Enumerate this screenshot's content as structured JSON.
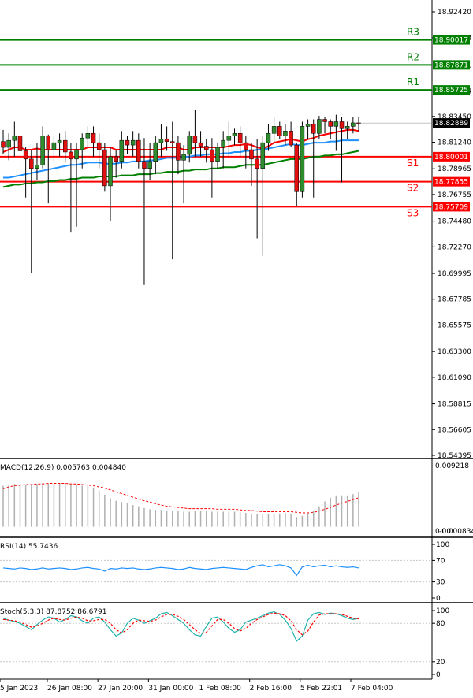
{
  "chart_data": {
    "type": "candlestick",
    "price_axis": {
      "ticks": [
        "18.92420",
        "18.90193",
        "18.87871",
        "18.85644",
        "18.83450",
        "18.81240",
        "18.78965",
        "18.76755",
        "18.74480",
        "18.72270",
        "18.69995",
        "18.67785",
        "18.65575",
        "18.63300",
        "18.61090",
        "18.58815",
        "18.56605",
        "18.54395"
      ],
      "range": [
        18.54395,
        18.9242
      ]
    },
    "levels": [
      {
        "name": "R3",
        "value": 18.90017,
        "value_text": "18.90017",
        "color": "#008000"
      },
      {
        "name": "R2",
        "value": 18.87871,
        "value_text": "18.87871",
        "color": "#008000"
      },
      {
        "name": "R1",
        "value": 18.85725,
        "value_text": "18.85725",
        "color": "#008000"
      },
      {
        "name": "S1",
        "value": 18.80001,
        "value_text": "18.80001",
        "color": "#ff0000"
      },
      {
        "name": "S2",
        "value": 18.77855,
        "value_text": "18.77855",
        "color": "#ff0000"
      },
      {
        "name": "S3",
        "value": 18.75709,
        "value_text": "18.75709",
        "color": "#ff0000"
      }
    ],
    "current_price": {
      "value": 18.82889,
      "value_text": "18.82889"
    },
    "candles": [
      [
        18.813,
        18.823,
        18.802,
        18.808
      ],
      [
        18.808,
        18.82,
        18.797,
        18.814
      ],
      [
        18.814,
        18.83,
        18.8,
        18.818
      ],
      [
        18.818,
        18.819,
        18.795,
        18.805
      ],
      [
        18.805,
        18.808,
        18.765,
        18.798
      ],
      [
        18.798,
        18.806,
        18.7,
        18.79
      ],
      [
        18.79,
        18.812,
        18.78,
        18.793
      ],
      [
        18.793,
        18.826,
        18.79,
        18.818
      ],
      [
        18.818,
        18.819,
        18.76,
        18.806
      ],
      [
        18.806,
        18.818,
        18.795,
        18.812
      ],
      [
        18.812,
        18.82,
        18.8,
        18.814
      ],
      [
        18.814,
        18.822,
        18.795,
        18.804
      ],
      [
        18.804,
        18.812,
        18.735,
        18.798
      ],
      [
        18.798,
        18.812,
        18.74,
        18.806
      ],
      [
        18.806,
        18.82,
        18.79,
        18.816
      ],
      [
        18.816,
        18.826,
        18.808,
        18.82
      ],
      [
        18.82,
        18.826,
        18.8,
        18.812
      ],
      [
        18.812,
        18.82,
        18.79,
        18.806
      ],
      [
        18.806,
        18.812,
        18.77,
        18.775
      ],
      [
        18.775,
        18.808,
        18.745,
        18.8
      ],
      [
        18.8,
        18.806,
        18.782,
        18.796
      ],
      [
        18.796,
        18.822,
        18.79,
        18.814
      ],
      [
        18.814,
        18.818,
        18.802,
        18.81
      ],
      [
        18.81,
        18.822,
        18.8,
        18.814
      ],
      [
        18.814,
        18.82,
        18.79,
        18.796
      ],
      [
        18.796,
        18.816,
        18.69,
        18.79
      ],
      [
        18.79,
        18.812,
        18.78,
        18.796
      ],
      [
        18.796,
        18.818,
        18.785,
        18.812
      ],
      [
        18.812,
        18.828,
        18.8,
        18.815
      ],
      [
        18.815,
        18.826,
        18.805,
        18.813
      ],
      [
        18.813,
        18.83,
        18.712,
        18.812
      ],
      [
        18.812,
        18.818,
        18.785,
        18.797
      ],
      [
        18.797,
        18.81,
        18.76,
        18.802
      ],
      [
        18.802,
        18.822,
        18.795,
        18.818
      ],
      [
        18.818,
        18.84,
        18.8,
        18.812
      ],
      [
        18.812,
        18.822,
        18.8,
        18.809
      ],
      [
        18.809,
        18.815,
        18.795,
        18.806
      ],
      [
        18.806,
        18.816,
        18.765,
        18.796
      ],
      [
        18.796,
        18.812,
        18.79,
        18.808
      ],
      [
        18.808,
        18.822,
        18.79,
        18.814
      ],
      [
        18.814,
        18.83,
        18.8,
        18.818
      ],
      [
        18.818,
        18.824,
        18.81,
        18.82
      ],
      [
        18.82,
        18.826,
        18.8,
        18.812
      ],
      [
        18.812,
        18.818,
        18.79,
        18.806
      ],
      [
        18.806,
        18.812,
        18.775,
        18.798
      ],
      [
        18.798,
        18.815,
        18.73,
        18.79
      ],
      [
        18.79,
        18.818,
        18.715,
        18.812
      ],
      [
        18.812,
        18.828,
        18.805,
        18.82
      ],
      [
        18.82,
        18.834,
        18.812,
        18.826
      ],
      [
        18.826,
        18.83,
        18.815,
        18.818
      ],
      [
        18.818,
        18.828,
        18.81,
        18.822
      ],
      [
        18.822,
        18.83,
        18.808,
        18.81
      ],
      [
        18.81,
        18.812,
        18.758,
        18.77
      ],
      [
        18.77,
        18.83,
        18.765,
        18.826
      ],
      [
        18.826,
        18.832,
        18.815,
        18.828
      ],
      [
        18.828,
        18.832,
        18.765,
        18.82
      ],
      [
        18.82,
        18.835,
        18.815,
        18.832
      ],
      [
        18.832,
        18.834,
        18.82,
        18.83
      ],
      [
        18.83,
        18.832,
        18.815,
        18.826
      ],
      [
        18.826,
        18.836,
        18.805,
        18.83
      ],
      [
        18.83,
        18.834,
        18.778,
        18.824
      ],
      [
        18.824,
        18.83,
        18.815,
        18.826
      ],
      [
        18.826,
        18.834,
        18.82,
        18.829
      ],
      [
        18.829,
        18.834,
        18.822,
        18.8289
      ]
    ],
    "moving_averages": [
      {
        "color": "#ff0000",
        "values": [
          18.804,
          18.806,
          18.808,
          18.808,
          18.806,
          18.806,
          18.807,
          18.806,
          18.806,
          18.806,
          18.806,
          18.806,
          18.806,
          18.806,
          18.806,
          18.808,
          18.808,
          18.808,
          18.808,
          18.808,
          18.806,
          18.806,
          18.806,
          18.806,
          18.806,
          18.806,
          18.806,
          18.806,
          18.806,
          18.808,
          18.808,
          18.808,
          18.806,
          18.806,
          18.808,
          18.808,
          18.808,
          18.808,
          18.808,
          18.808,
          18.809,
          18.81,
          18.81,
          18.811,
          18.81,
          18.808,
          18.807,
          18.809,
          18.812,
          18.813,
          18.814,
          18.815,
          18.814,
          18.813,
          18.815,
          18.816,
          18.818,
          18.819,
          18.82,
          18.821,
          18.822,
          18.823,
          18.823,
          18.822
        ]
      },
      {
        "color": "#1e90ff",
        "values": [
          18.782,
          18.782,
          18.783,
          18.784,
          18.785,
          18.786,
          18.787,
          18.788,
          18.789,
          18.79,
          18.791,
          18.792,
          18.793,
          18.793,
          18.794,
          18.795,
          18.795,
          18.795,
          18.794,
          18.794,
          18.794,
          18.795,
          18.795,
          18.796,
          18.796,
          18.796,
          18.797,
          18.797,
          18.798,
          18.799,
          18.799,
          18.799,
          18.8,
          18.8,
          18.801,
          18.801,
          18.802,
          18.802,
          18.802,
          18.803,
          18.803,
          18.804,
          18.804,
          18.805,
          18.805,
          18.806,
          18.806,
          18.807,
          18.808,
          18.809,
          18.81,
          18.811,
          18.81,
          18.81,
          18.811,
          18.812,
          18.812,
          18.812,
          18.813,
          18.813,
          18.814,
          18.814,
          18.814,
          18.814
        ]
      },
      {
        "color": "#008000",
        "values": [
          18.774,
          18.775,
          18.776,
          18.776,
          18.777,
          18.777,
          18.778,
          18.778,
          18.779,
          18.779,
          18.78,
          18.78,
          18.781,
          18.781,
          18.782,
          18.782,
          18.782,
          18.783,
          18.783,
          18.783,
          18.783,
          18.784,
          18.784,
          18.784,
          18.785,
          18.785,
          18.785,
          18.786,
          18.786,
          18.787,
          18.787,
          18.787,
          18.788,
          18.788,
          18.789,
          18.789,
          18.789,
          18.79,
          18.79,
          18.791,
          18.791,
          18.791,
          18.792,
          18.793,
          18.793,
          18.793,
          18.793,
          18.794,
          18.795,
          18.796,
          18.797,
          18.798,
          18.798,
          18.798,
          18.799,
          18.8,
          18.8,
          18.801,
          18.801,
          18.802,
          18.802,
          18.803,
          18.804,
          18.805
        ]
      }
    ],
    "time_labels": [
      "5 Jan 2023",
      "26 Jan 08:00",
      "27 Jan 20:00",
      "31 Jan 00:00",
      "1 Feb 08:00",
      "2 Feb 16:00",
      "5 Feb 22:01",
      "7 Feb 04:00"
    ],
    "macd": {
      "label": "MACD(12,26,9) 0.005763 0.004840",
      "axis_top": "0.009218",
      "axis_mid": "0.00",
      "axis_bottom": "-0.000834",
      "range": [
        -0.000834,
        0.009218
      ],
      "histogram": [
        0.0068,
        0.007,
        0.0071,
        0.0071,
        0.007,
        0.007,
        0.0071,
        0.0072,
        0.0072,
        0.0072,
        0.0072,
        0.0071,
        0.007,
        0.0069,
        0.0068,
        0.0067,
        0.0065,
        0.006,
        0.0053,
        0.0047,
        0.0043,
        0.0041,
        0.0039,
        0.0036,
        0.0034,
        0.0031,
        0.0029,
        0.0028,
        0.0028,
        0.0027,
        0.0027,
        0.0026,
        0.0025,
        0.0025,
        0.0026,
        0.0026,
        0.0026,
        0.0025,
        0.0025,
        0.0025,
        0.0025,
        0.0025,
        0.0024,
        0.0023,
        0.0022,
        0.0021,
        0.002,
        0.0021,
        0.0022,
        0.0022,
        0.0023,
        0.0022,
        0.0016,
        0.0018,
        0.0022,
        0.0027,
        0.0034,
        0.0042,
        0.0048,
        0.0052,
        0.0052,
        0.0052,
        0.0054,
        0.0058
      ],
      "signal": [
        0.0063,
        0.0066,
        0.0068,
        0.0069,
        0.007,
        0.007,
        0.0071,
        0.0071,
        0.0072,
        0.0072,
        0.0072,
        0.0072,
        0.0071,
        0.0071,
        0.007,
        0.0069,
        0.0068,
        0.0066,
        0.0064,
        0.0061,
        0.0058,
        0.0055,
        0.0052,
        0.0049,
        0.0046,
        0.0043,
        0.0041,
        0.0038,
        0.0036,
        0.0034,
        0.0033,
        0.0032,
        0.0031,
        0.003,
        0.003,
        0.003,
        0.003,
        0.003,
        0.0029,
        0.0029,
        0.0029,
        0.0029,
        0.0028,
        0.0027,
        0.0027,
        0.0026,
        0.0025,
        0.0025,
        0.0025,
        0.0025,
        0.0025,
        0.0025,
        0.0024,
        0.0023,
        0.0023,
        0.0024,
        0.0026,
        0.0029,
        0.0032,
        0.0036,
        0.0039,
        0.0042,
        0.0045,
        0.0048
      ]
    },
    "rsi": {
      "label": "RSI(14) 55.7436",
      "ticks": [
        "100",
        "70",
        "30",
        "0"
      ],
      "values": [
        56,
        55,
        54,
        56,
        55,
        53,
        54,
        56,
        54,
        55,
        56,
        55,
        53,
        54,
        56,
        57,
        55,
        54,
        50,
        55,
        54,
        56,
        55,
        56,
        54,
        53,
        54,
        56,
        57,
        56,
        55,
        53,
        54,
        57,
        55,
        54,
        53,
        55,
        56,
        57,
        56,
        55,
        54,
        53,
        57,
        60,
        62,
        58,
        60,
        62,
        60,
        56,
        42,
        58,
        61,
        58,
        60,
        61,
        58,
        60,
        58,
        57,
        58,
        56
      ]
    },
    "stoch": {
      "label": "Stoch(5,3,3) 87.8752 86.6791",
      "ticks": [
        "100",
        "80",
        "20",
        "0"
      ],
      "k": [
        88,
        85,
        83,
        80,
        75,
        70,
        78,
        85,
        90,
        88,
        82,
        86,
        92,
        90,
        84,
        80,
        88,
        90,
        82,
        70,
        60,
        65,
        80,
        88,
        85,
        80,
        84,
        88,
        95,
        97,
        92,
        86,
        80,
        70,
        62,
        60,
        75,
        88,
        90,
        82,
        72,
        66,
        70,
        82,
        85,
        88,
        92,
        96,
        98,
        94,
        85,
        72,
        52,
        60,
        85,
        95,
        97,
        94,
        96,
        95,
        92,
        88,
        86,
        88
      ],
      "d": [
        86,
        85,
        84,
        82,
        78,
        74,
        76,
        80,
        85,
        88,
        86,
        85,
        88,
        90,
        88,
        84,
        84,
        86,
        86,
        80,
        70,
        65,
        70,
        80,
        85,
        84,
        83,
        85,
        90,
        94,
        94,
        91,
        86,
        78,
        70,
        64,
        66,
        76,
        86,
        86,
        80,
        72,
        68,
        72,
        80,
        86,
        90,
        94,
        96,
        95,
        92,
        84,
        70,
        62,
        68,
        82,
        93,
        95,
        95,
        95,
        94,
        91,
        88,
        87
      ]
    }
  }
}
